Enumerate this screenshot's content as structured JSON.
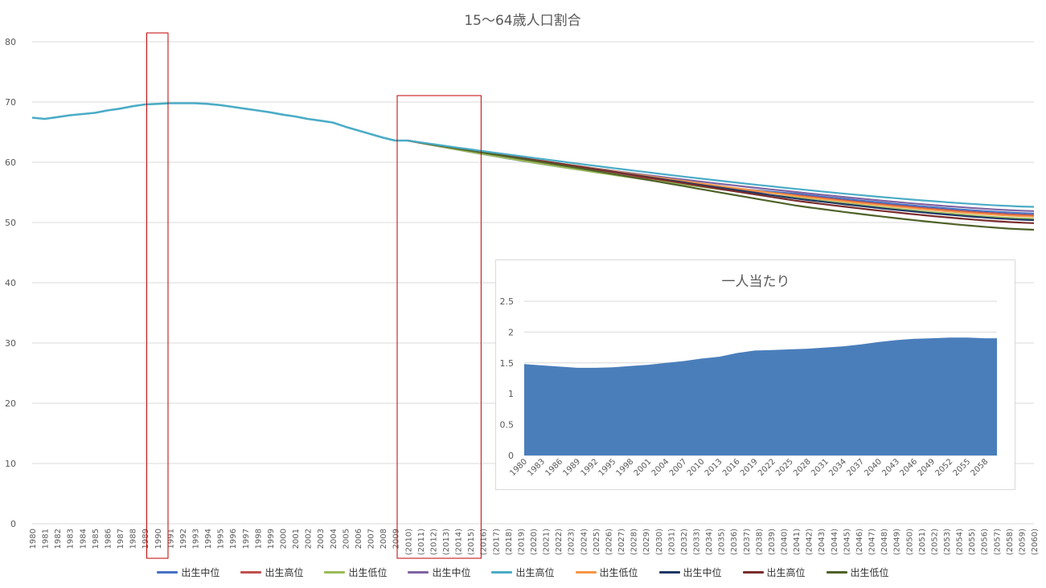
{
  "colors": {
    "grid": "#d9d9d9",
    "axis_text": "#595959",
    "highlight_box": "#c00000",
    "inset_area": "#4a7ebb"
  },
  "chart_data": [
    {
      "type": "line",
      "title": "15～64歳人口割合",
      "ylim": [
        0,
        80
      ],
      "yticks": [
        0,
        10,
        20,
        30,
        40,
        50,
        60,
        70,
        80
      ],
      "grid": true,
      "legend_position": "bottom",
      "categories": [
        "1980",
        "1981",
        "1982",
        "1983",
        "1984",
        "1985",
        "1986",
        "1987",
        "1988",
        "1989",
        "1990",
        "1991",
        "1992",
        "1993",
        "1994",
        "1995",
        "1996",
        "1997",
        "1998",
        "1999",
        "2000",
        "2001",
        "2002",
        "2003",
        "2004",
        "2005",
        "2006",
        "2007",
        "2008",
        "2009",
        "(2010)",
        "(2011)",
        "(2012)",
        "(2013)",
        "(2014)",
        "(2015)",
        "(2016)",
        "(2017)",
        "(2018)",
        "(2019)",
        "(2020)",
        "(2021)",
        "(2022)",
        "(2023)",
        "(2024)",
        "(2025)",
        "(2026)",
        "(2027)",
        "(2028)",
        "(2029)",
        "(2030)",
        "(2031)",
        "(2032)",
        "(2033)",
        "(2034)",
        "(2035)",
        "(2036)",
        "(2037)",
        "(2038)",
        "(2039)",
        "(2040)",
        "(2041)",
        "(2042)",
        "(2043)",
        "(2044)",
        "(2045)",
        "(2046)",
        "(2047)",
        "(2048)",
        "(2049)",
        "(2050)",
        "(2051)",
        "(2052)",
        "(2053)",
        "(2054)",
        "(2055)",
        "(2056)",
        "(2057)",
        "(2058)",
        "(2059)",
        "(2060)"
      ],
      "historical": [
        67.4,
        67.2,
        67.5,
        67.8,
        68.0,
        68.2,
        68.6,
        68.9,
        69.3,
        69.6,
        69.7,
        69.8,
        69.8,
        69.8,
        69.7,
        69.5,
        69.2,
        68.9,
        68.6,
        68.3,
        67.9,
        67.6,
        67.2,
        66.9,
        66.6,
        65.9,
        65.3,
        64.7,
        64.1,
        63.6,
        63.6
      ],
      "highlight_boxes": [
        {
          "from": "1990",
          "to": "1990"
        },
        {
          "from": "(2010)",
          "to": "(2015)"
        }
      ],
      "series": [
        {
          "name": "出生中位",
          "color": "#4472c4",
          "proj_end": 51.5
        },
        {
          "name": "出生高位",
          "color": "#c0504d",
          "proj_end": 51.2
        },
        {
          "name": "出生低位",
          "color": "#9bbb59",
          "proj_end": 50.6
        },
        {
          "name": "出生中位",
          "color": "#8064a2",
          "proj_end": 51.9
        },
        {
          "name": "出生高位",
          "color": "#4bacc6",
          "proj_end": 52.6
        },
        {
          "name": "出生低位",
          "color": "#f79646",
          "proj_end": 51.0
        },
        {
          "name": "出生中位",
          "color": "#1f3864",
          "proj_end": 50.4
        },
        {
          "name": "出生高位",
          "color": "#7b2c2c",
          "proj_end": 49.9
        },
        {
          "name": "出生低位",
          "color": "#4f6228",
          "proj_end": 48.8
        }
      ]
    },
    {
      "type": "area",
      "title": "一人当たり",
      "ylim": [
        0,
        2.5
      ],
      "yticks": [
        "0",
        "0.5",
        "1",
        "1.5",
        "2",
        "2.5"
      ],
      "grid": true,
      "x_start": 1980,
      "x_end": 2060,
      "xticks": [
        "1980",
        "1983",
        "1986",
        "1989",
        "1992",
        "1995",
        "1998",
        "2001",
        "2004",
        "2007",
        "2010",
        "2013",
        "2016",
        "2019",
        "2022",
        "2025",
        "2028",
        "2031",
        "2034",
        "2037",
        "2040",
        "2043",
        "2046",
        "2049",
        "2052",
        "2055",
        "2058"
      ],
      "anchors": [
        [
          1980,
          1.48
        ],
        [
          1983,
          1.46
        ],
        [
          1986,
          1.44
        ],
        [
          1989,
          1.42
        ],
        [
          1992,
          1.42
        ],
        [
          1995,
          1.43
        ],
        [
          1998,
          1.45
        ],
        [
          2001,
          1.47
        ],
        [
          2004,
          1.5
        ],
        [
          2007,
          1.53
        ],
        [
          2010,
          1.57
        ],
        [
          2013,
          1.6
        ],
        [
          2016,
          1.66
        ],
        [
          2019,
          1.7
        ],
        [
          2022,
          1.71
        ],
        [
          2025,
          1.72
        ],
        [
          2028,
          1.73
        ],
        [
          2031,
          1.75
        ],
        [
          2034,
          1.77
        ],
        [
          2037,
          1.8
        ],
        [
          2040,
          1.84
        ],
        [
          2043,
          1.87
        ],
        [
          2046,
          1.89
        ],
        [
          2049,
          1.9
        ],
        [
          2052,
          1.91
        ],
        [
          2055,
          1.91
        ],
        [
          2058,
          1.9
        ],
        [
          2060,
          1.9
        ]
      ]
    }
  ]
}
